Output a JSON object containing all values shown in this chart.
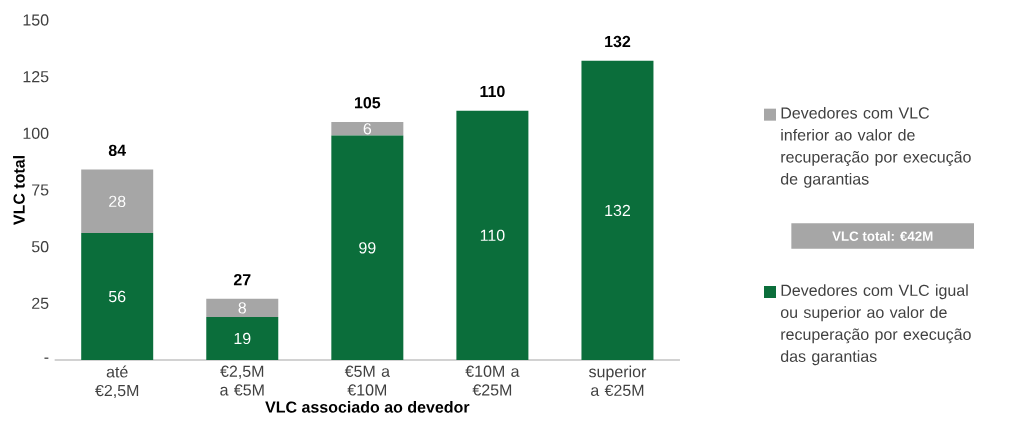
{
  "chart_data": {
    "type": "bar",
    "stacked": true,
    "xlabel": "VLC associado ao devedor",
    "ylabel": "VLC total",
    "categories": [
      "até €2,5M",
      "€2,5M a €5M",
      "€5M a €10M",
      "€10M a €25M",
      "superior a €25M"
    ],
    "series": [
      {
        "name": "Devedores com VLC igual ou superior ao valor de recuperação por execução das garantias",
        "color": "#0b6e3b",
        "values": [
          56,
          19,
          99,
          110,
          132
        ]
      },
      {
        "name": "Devedores com VLC inferior ao valor de recuperação por execução de garantias",
        "color": "#a6a6a6",
        "values": [
          28,
          8,
          6,
          null,
          null
        ]
      }
    ],
    "totals": [
      "84",
      "27",
      "105",
      "110",
      "132"
    ],
    "data_labels": true,
    "ylim": [
      0,
      150
    ],
    "yticks": [
      {
        "value": 0,
        "label": "-"
      },
      25,
      50,
      75,
      100,
      125,
      150
    ],
    "grid": false,
    "legend": "right",
    "annotations": [
      "VLC total: €42M"
    ]
  }
}
